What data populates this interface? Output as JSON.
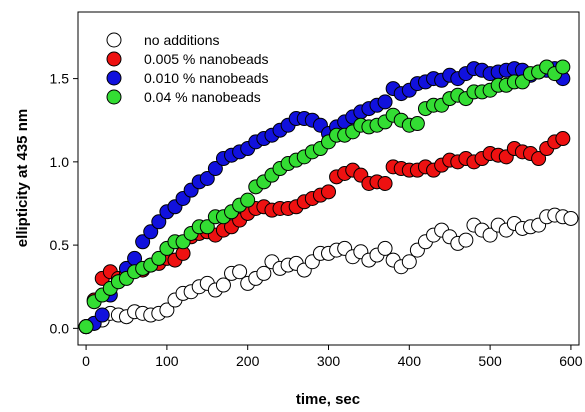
{
  "chart_data": {
    "type": "scatter",
    "title": "",
    "xlabel": "time, sec",
    "ylabel": "ellipticity at 435 nm",
    "xlim": [
      -10,
      610
    ],
    "ylim": [
      -0.1,
      1.9
    ],
    "xticks": [
      0,
      100,
      200,
      300,
      400,
      500,
      600
    ],
    "yticks": [
      0.0,
      0.5,
      1.0,
      1.5
    ],
    "ytick_labels": [
      "0.0",
      "0.5",
      "1.0",
      "1.5"
    ],
    "grid": false,
    "legend_position": "top-left",
    "series": [
      {
        "name": "no additions",
        "color": "#ffffff",
        "points": [
          [
            0,
            0.01
          ],
          [
            10,
            0.03
          ],
          [
            20,
            0.05
          ],
          [
            30,
            0.09
          ],
          [
            40,
            0.08
          ],
          [
            50,
            0.07
          ],
          [
            60,
            0.1
          ],
          [
            70,
            0.09
          ],
          [
            80,
            0.08
          ],
          [
            90,
            0.09
          ],
          [
            100,
            0.11
          ],
          [
            110,
            0.17
          ],
          [
            120,
            0.21
          ],
          [
            130,
            0.22
          ],
          [
            140,
            0.25
          ],
          [
            150,
            0.27
          ],
          [
            160,
            0.23
          ],
          [
            170,
            0.26
          ],
          [
            180,
            0.33
          ],
          [
            190,
            0.34
          ],
          [
            200,
            0.27
          ],
          [
            210,
            0.3
          ],
          [
            220,
            0.33
          ],
          [
            230,
            0.4
          ],
          [
            240,
            0.36
          ],
          [
            250,
            0.38
          ],
          [
            260,
            0.39
          ],
          [
            270,
            0.35
          ],
          [
            280,
            0.4
          ],
          [
            290,
            0.45
          ],
          [
            300,
            0.45
          ],
          [
            310,
            0.47
          ],
          [
            320,
            0.48
          ],
          [
            330,
            0.43
          ],
          [
            340,
            0.46
          ],
          [
            350,
            0.41
          ],
          [
            360,
            0.44
          ],
          [
            370,
            0.48
          ],
          [
            380,
            0.41
          ],
          [
            390,
            0.37
          ],
          [
            400,
            0.4
          ],
          [
            410,
            0.47
          ],
          [
            420,
            0.52
          ],
          [
            430,
            0.56
          ],
          [
            440,
            0.59
          ],
          [
            450,
            0.55
          ],
          [
            460,
            0.51
          ],
          [
            470,
            0.53
          ],
          [
            480,
            0.62
          ],
          [
            490,
            0.59
          ],
          [
            500,
            0.56
          ],
          [
            510,
            0.62
          ],
          [
            520,
            0.59
          ],
          [
            530,
            0.63
          ],
          [
            540,
            0.6
          ],
          [
            550,
            0.61
          ],
          [
            560,
            0.62
          ],
          [
            570,
            0.67
          ],
          [
            580,
            0.68
          ],
          [
            590,
            0.67
          ],
          [
            600,
            0.66
          ]
        ]
      },
      {
        "name": "0.005 % nanobeads",
        "color": "#ee1111",
        "points": [
          [
            0,
            0.01
          ],
          [
            10,
            0.17
          ],
          [
            20,
            0.3
          ],
          [
            30,
            0.34
          ],
          [
            40,
            0.3
          ],
          [
            50,
            0.33
          ],
          [
            60,
            0.35
          ],
          [
            70,
            0.35
          ],
          [
            80,
            0.38
          ],
          [
            90,
            0.39
          ],
          [
            100,
            0.42
          ],
          [
            110,
            0.41
          ],
          [
            120,
            0.45
          ],
          [
            130,
            0.55
          ],
          [
            140,
            0.57
          ],
          [
            150,
            0.58
          ],
          [
            160,
            0.56
          ],
          [
            170,
            0.59
          ],
          [
            180,
            0.61
          ],
          [
            190,
            0.65
          ],
          [
            200,
            0.69
          ],
          [
            210,
            0.72
          ],
          [
            220,
            0.73
          ],
          [
            230,
            0.71
          ],
          [
            240,
            0.72
          ],
          [
            250,
            0.72
          ],
          [
            260,
            0.73
          ],
          [
            270,
            0.76
          ],
          [
            280,
            0.78
          ],
          [
            290,
            0.8
          ],
          [
            300,
            0.82
          ],
          [
            310,
            0.91
          ],
          [
            320,
            0.93
          ],
          [
            330,
            0.95
          ],
          [
            340,
            0.92
          ],
          [
            350,
            0.87
          ],
          [
            360,
            0.88
          ],
          [
            370,
            0.87
          ],
          [
            380,
            0.97
          ],
          [
            390,
            0.96
          ],
          [
            400,
            0.95
          ],
          [
            410,
            0.95
          ],
          [
            420,
            0.97
          ],
          [
            430,
            0.95
          ],
          [
            440,
            0.98
          ],
          [
            450,
            1.01
          ],
          [
            460,
            1.0
          ],
          [
            470,
            1.02
          ],
          [
            480,
            1.0
          ],
          [
            490,
            1.02
          ],
          [
            500,
            1.05
          ],
          [
            510,
            1.04
          ],
          [
            520,
            1.03
          ],
          [
            530,
            1.08
          ],
          [
            540,
            1.06
          ],
          [
            550,
            1.05
          ],
          [
            560,
            1.02
          ],
          [
            570,
            1.08
          ],
          [
            580,
            1.12
          ],
          [
            590,
            1.14
          ]
        ]
      },
      {
        "name": "0.010 % nanobeads",
        "color": "#1111dd",
        "points": [
          [
            0,
            0.01
          ],
          [
            10,
            0.03
          ],
          [
            20,
            0.08
          ],
          [
            30,
            0.2
          ],
          [
            40,
            0.28
          ],
          [
            50,
            0.36
          ],
          [
            60,
            0.42
          ],
          [
            70,
            0.52
          ],
          [
            80,
            0.58
          ],
          [
            90,
            0.64
          ],
          [
            100,
            0.7
          ],
          [
            110,
            0.73
          ],
          [
            120,
            0.78
          ],
          [
            130,
            0.83
          ],
          [
            140,
            0.88
          ],
          [
            150,
            0.9
          ],
          [
            160,
            0.96
          ],
          [
            170,
            1.02
          ],
          [
            180,
            1.04
          ],
          [
            190,
            1.06
          ],
          [
            200,
            1.08
          ],
          [
            210,
            1.12
          ],
          [
            220,
            1.14
          ],
          [
            230,
            1.16
          ],
          [
            240,
            1.19
          ],
          [
            250,
            1.22
          ],
          [
            260,
            1.26
          ],
          [
            270,
            1.26
          ],
          [
            280,
            1.25
          ],
          [
            290,
            1.22
          ],
          [
            300,
            1.17
          ],
          [
            310,
            1.21
          ],
          [
            320,
            1.24
          ],
          [
            330,
            1.27
          ],
          [
            340,
            1.3
          ],
          [
            350,
            1.32
          ],
          [
            360,
            1.34
          ],
          [
            370,
            1.36
          ],
          [
            380,
            1.44
          ],
          [
            390,
            1.41
          ],
          [
            400,
            1.43
          ],
          [
            410,
            1.47
          ],
          [
            420,
            1.48
          ],
          [
            430,
            1.5
          ],
          [
            440,
            1.49
          ],
          [
            450,
            1.52
          ],
          [
            460,
            1.5
          ],
          [
            470,
            1.53
          ],
          [
            480,
            1.56
          ],
          [
            490,
            1.55
          ],
          [
            500,
            1.53
          ],
          [
            510,
            1.54
          ],
          [
            520,
            1.55
          ],
          [
            530,
            1.56
          ],
          [
            540,
            1.55
          ],
          [
            550,
            1.52
          ],
          [
            560,
            1.54
          ],
          [
            570,
            1.55
          ],
          [
            580,
            1.56
          ],
          [
            590,
            1.5
          ]
        ]
      },
      {
        "name": "0.04 % nanobeads",
        "color": "#33dd33",
        "points": [
          [
            0,
            0.01
          ],
          [
            10,
            0.16
          ],
          [
            20,
            0.2
          ],
          [
            30,
            0.24
          ],
          [
            40,
            0.28
          ],
          [
            50,
            0.3
          ],
          [
            60,
            0.34
          ],
          [
            70,
            0.36
          ],
          [
            80,
            0.38
          ],
          [
            90,
            0.42
          ],
          [
            100,
            0.48
          ],
          [
            110,
            0.52
          ],
          [
            120,
            0.52
          ],
          [
            130,
            0.57
          ],
          [
            140,
            0.61
          ],
          [
            150,
            0.61
          ],
          [
            160,
            0.67
          ],
          [
            170,
            0.67
          ],
          [
            180,
            0.7
          ],
          [
            190,
            0.74
          ],
          [
            200,
            0.77
          ],
          [
            210,
            0.85
          ],
          [
            220,
            0.88
          ],
          [
            230,
            0.92
          ],
          [
            240,
            0.96
          ],
          [
            250,
            0.99
          ],
          [
            260,
            1.01
          ],
          [
            270,
            1.03
          ],
          [
            280,
            1.06
          ],
          [
            290,
            1.08
          ],
          [
            300,
            1.12
          ],
          [
            310,
            1.16
          ],
          [
            320,
            1.16
          ],
          [
            330,
            1.18
          ],
          [
            340,
            1.22
          ],
          [
            350,
            1.21
          ],
          [
            360,
            1.22
          ],
          [
            370,
            1.24
          ],
          [
            380,
            1.28
          ],
          [
            390,
            1.25
          ],
          [
            400,
            1.22
          ],
          [
            410,
            1.23
          ],
          [
            420,
            1.32
          ],
          [
            430,
            1.34
          ],
          [
            440,
            1.34
          ],
          [
            450,
            1.38
          ],
          [
            460,
            1.4
          ],
          [
            470,
            1.38
          ],
          [
            480,
            1.42
          ],
          [
            490,
            1.42
          ],
          [
            500,
            1.43
          ],
          [
            510,
            1.46
          ],
          [
            520,
            1.46
          ],
          [
            530,
            1.48
          ],
          [
            540,
            1.48
          ],
          [
            550,
            1.53
          ],
          [
            560,
            1.54
          ],
          [
            570,
            1.57
          ],
          [
            580,
            1.53
          ],
          [
            590,
            1.57
          ]
        ]
      }
    ]
  }
}
